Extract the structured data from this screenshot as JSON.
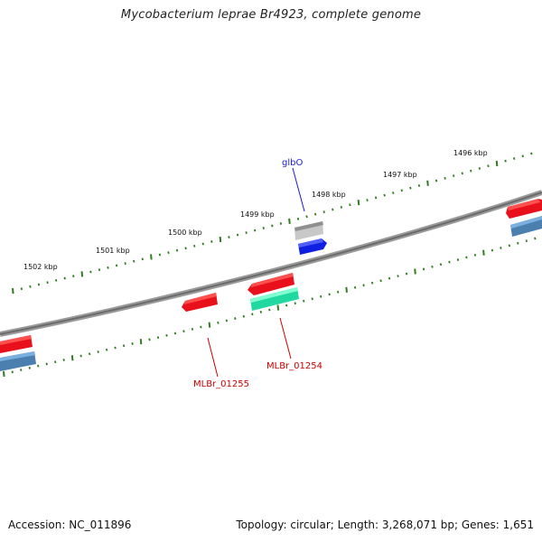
{
  "header": {
    "title": "Mycobacterium leprae Br4923, complete genome"
  },
  "footer": {
    "accession": "Accession: NC_011896",
    "summary": "Topology: circular; Length: 3,268,071 bp; Genes: 1,651"
  },
  "colors": {
    "backbone": "#7a7a7a",
    "tick": "#2e7d1e",
    "fwd_red": "#e8101a",
    "fwd_gray": "#b4b4b4",
    "fwd_blue": "#1020e0",
    "rev_red": "#e8101a",
    "rev_green": "#20d8a0",
    "rev_steel": "#4a7fb0",
    "label_blue": "#1a1ad8",
    "label_red": "#cc0000"
  },
  "scale_labels": [
    "1496 kbp",
    "1497 kbp",
    "1498 kbp",
    "1499 kbp",
    "1500 kbp",
    "1501 kbp",
    "1502 kbp"
  ],
  "features": [
    {
      "name": "glbO",
      "strand": "forward",
      "color": "fwd_blue",
      "labeled": true
    },
    {
      "name": "MLBr_01254",
      "strand": "reverse",
      "color": "rev_red",
      "labeled": true
    },
    {
      "name": "MLBr_01255",
      "strand": "reverse",
      "color": "rev_red",
      "labeled": true
    }
  ]
}
